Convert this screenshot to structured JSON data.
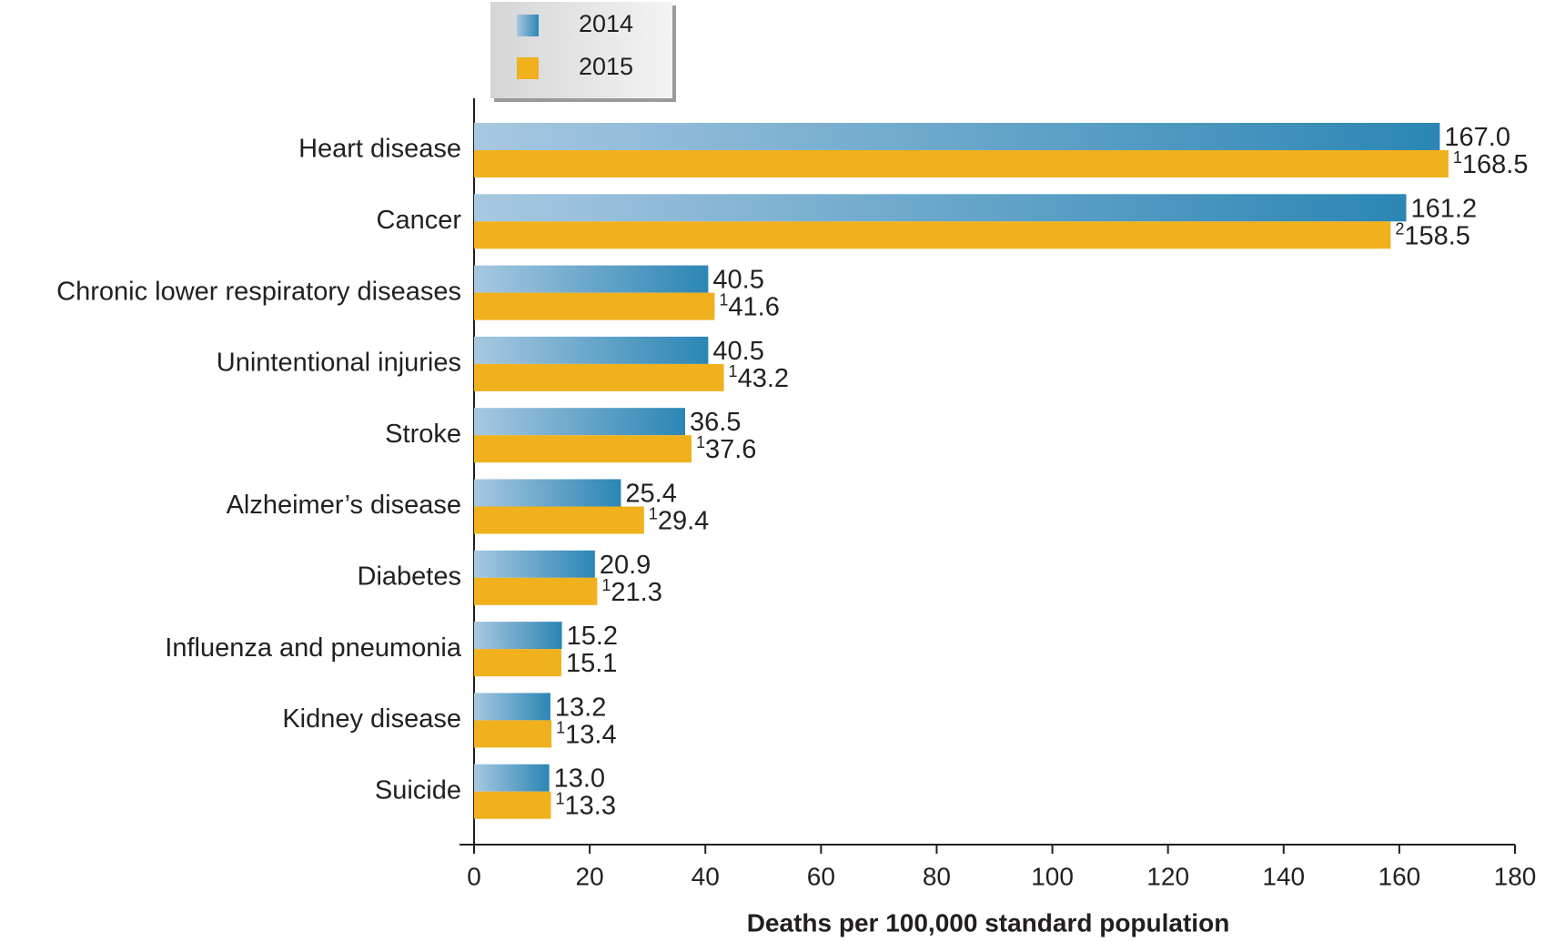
{
  "chart_data": {
    "type": "hbar",
    "x_label": "Deaths per 100,000 standard population",
    "categories": [
      "Heart disease",
      "Cancer",
      "Chronic lower respiratory diseases",
      "Unintentional injuries",
      "Stroke",
      "Alzheimer’s disease",
      "Diabetes",
      "Influenza and pneumonia",
      "Kidney disease",
      "Suicide"
    ],
    "series": [
      {
        "name": "2014",
        "color": "#2b86b4",
        "values": [
          167.0,
          161.2,
          40.5,
          40.5,
          36.5,
          25.4,
          20.9,
          15.2,
          13.2,
          13.0
        ],
        "value_labels": [
          "167.0",
          "161.2",
          "40.5",
          "40.5",
          "36.5",
          "25.4",
          "20.9",
          "15.2",
          "13.2",
          "13.0"
        ],
        "footnotes": [
          null,
          null,
          null,
          null,
          null,
          null,
          null,
          null,
          null,
          null
        ]
      },
      {
        "name": "2015",
        "color": "#f0b11d",
        "values": [
          168.5,
          158.5,
          41.6,
          43.2,
          37.6,
          29.4,
          21.3,
          15.1,
          13.4,
          13.3
        ],
        "value_labels": [
          "168.5",
          "158.5",
          "41.6",
          "43.2",
          "37.6",
          "29.4",
          "21.3",
          "15.1",
          "13.4",
          "13.3"
        ],
        "footnotes": [
          "1",
          "2",
          "1",
          "1",
          "1",
          "1",
          "1",
          null,
          "1",
          "1"
        ]
      }
    ],
    "xlim": [
      0,
      180
    ],
    "xticks": [
      0,
      20,
      40,
      60,
      80,
      100,
      120,
      140,
      160,
      180
    ],
    "grid": false
  }
}
